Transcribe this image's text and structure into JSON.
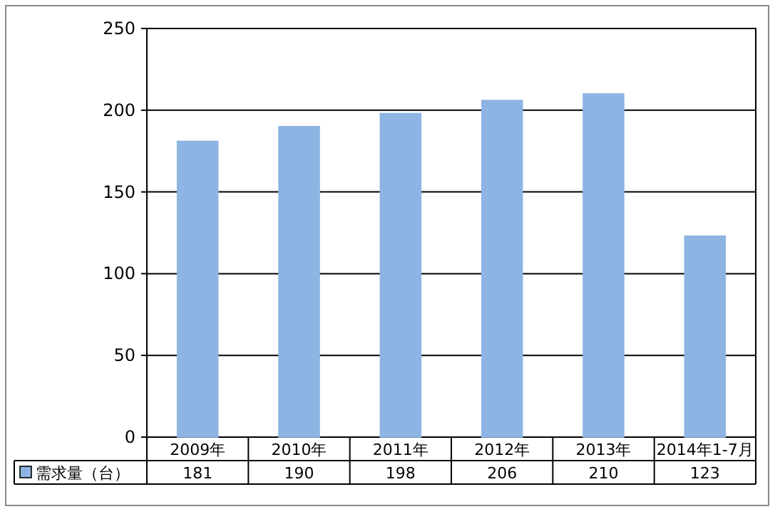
{
  "chart_data": {
    "type": "bar",
    "categories": [
      "2009年",
      "2010年",
      "2011年",
      "2012年",
      "2013年",
      "2014年1-7月"
    ],
    "series": [
      {
        "name": "需求量（台）",
        "color": "#8db4e2",
        "values": [
          181,
          190,
          198,
          206,
          210,
          123
        ]
      }
    ],
    "ylim": [
      0,
      250
    ],
    "yticks": [
      0,
      50,
      100,
      150,
      200,
      250
    ],
    "grid": "y",
    "legend": "bottom",
    "data_labels": true
  }
}
